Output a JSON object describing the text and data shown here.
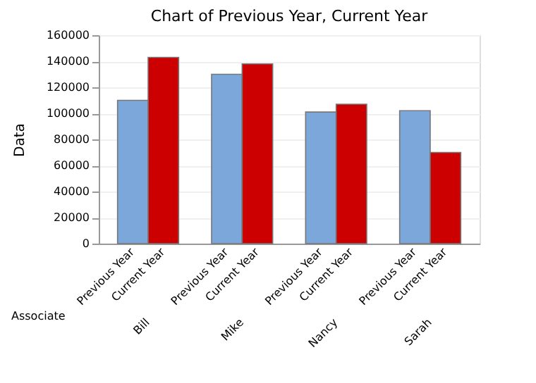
{
  "chart_data": {
    "type": "bar",
    "title": "Chart of Previous Year, Current Year",
    "xlabel": "Associate",
    "ylabel": "Data",
    "categories": [
      "Bill",
      "Mike",
      "Nancy",
      "Sarah"
    ],
    "series": [
      {
        "name": "Previous Year",
        "color": "#7ba7da",
        "values": [
          110000,
          130000,
          101000,
          102000
        ]
      },
      {
        "name": "Current Year",
        "color": "#cc0000",
        "values": [
          143000,
          138000,
          107000,
          70000
        ]
      }
    ],
    "ylim": [
      0,
      160000
    ],
    "yticks": [
      0,
      20000,
      40000,
      60000,
      80000,
      100000,
      120000,
      140000,
      160000
    ],
    "grid": "y"
  }
}
